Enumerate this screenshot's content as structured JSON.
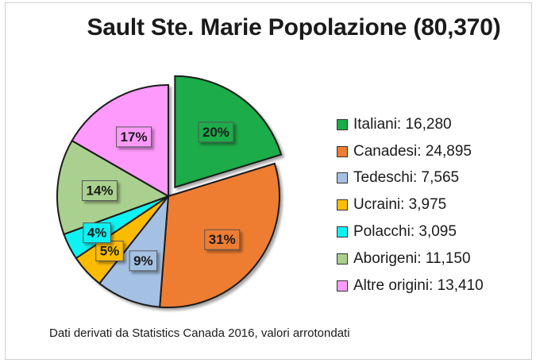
{
  "chart_data": {
    "type": "pie",
    "title": "Sault Ste. Marie Popolazione (80,370)",
    "note": "Dati derivati da Statistics Canada 2016, valori arrotondati",
    "legend_position": "right",
    "slices": [
      {
        "category": "Italiani",
        "value": 16280,
        "label": "20%",
        "legend": "Italiani: 16,280",
        "color": "#1aac48",
        "exploded": true
      },
      {
        "category": "Canadesi",
        "value": 24895,
        "label": "31%",
        "legend": "Canadesi: 24,895",
        "color": "#ee7d31",
        "exploded": false
      },
      {
        "category": "Tedeschi",
        "value": 7565,
        "label": "9%",
        "legend": "Tedeschi: 7,565",
        "color": "#a4c0e3",
        "exploded": false
      },
      {
        "category": "Ucraini",
        "value": 3975,
        "label": "5%",
        "legend": "Ucraini: 3,975",
        "color": "#fbbc04",
        "exploded": false
      },
      {
        "category": "Polacchi",
        "value": 3095,
        "label": "4%",
        "legend": "Polacchi: 3,095",
        "color": "#0cf2f2",
        "exploded": false
      },
      {
        "category": "Aborigeni",
        "value": 11150,
        "label": "14%",
        "legend": "Aborigeni: 11,150",
        "color": "#aad08f",
        "exploded": false
      },
      {
        "category": "Altre origini",
        "value": 13410,
        "label": "17%",
        "legend": "Altre origini: 13,410",
        "color": "#fe9afb",
        "exploded": false
      }
    ]
  }
}
